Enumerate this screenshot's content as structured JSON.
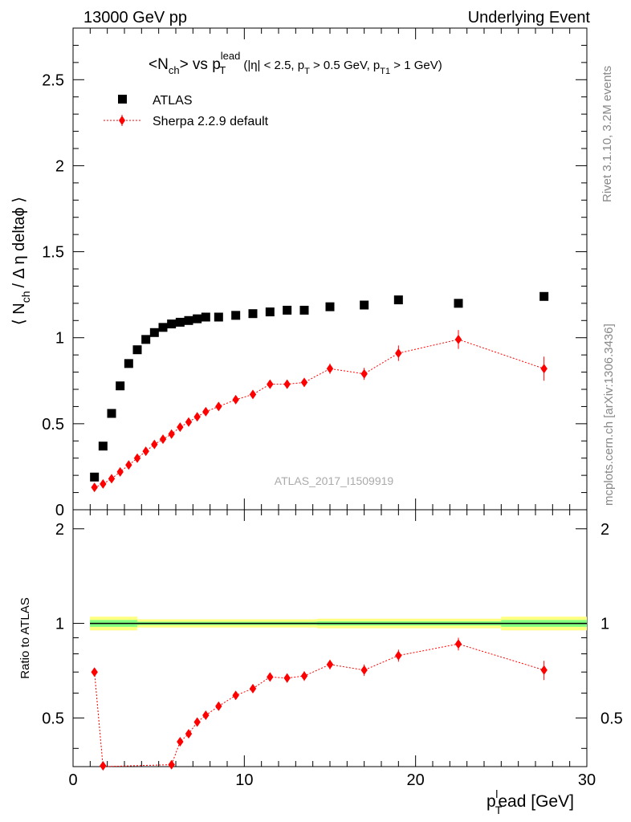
{
  "header": {
    "left": "13000 GeV pp",
    "right": "Underlying Event"
  },
  "plot_title": {
    "main_prefix": "<N",
    "main_sub": "ch",
    "main_mid": "> vs p",
    "main_sup": "lead",
    "main_sub2": "T",
    "cuts_1": "(|η| < 2.5, p",
    "cuts_sub1": "T",
    "cuts_2": " > 0.5 GeV, p",
    "cuts_sub2": "T1",
    "cuts_3": " > 1 GeV)"
  },
  "y_axis_label": {
    "pre": "⟨ N",
    "sub": "ch",
    "post": "/ Δ η deltaϕ ⟩"
  },
  "ratio_y_label": "Ratio to ATLAS",
  "x_axis_label": {
    "p": "p",
    "sub": "T",
    "sup": "l",
    "rest": "ead [GeV]"
  },
  "side_text": {
    "rivet": "Rivet 3.1.10,  3.2M events",
    "mcplots": "mcplots.cern.ch [arXiv:1306.3436]"
  },
  "watermark": "ATLAS_2017_I1509919",
  "legend": {
    "data_label": "ATLAS",
    "mc_label": "Sherpa 2.2.9 default"
  },
  "colors": {
    "data": "#000000",
    "mc": "#ff0000",
    "band_outer": "#ffff80",
    "band_inner": "#80ff80"
  },
  "chart_data": {
    "type": "scatter",
    "x_range": [
      0,
      30
    ],
    "main_y_range": [
      0,
      2.8
    ],
    "ratio_y_range": [
      0.35,
      2.3
    ],
    "main_y_ticks": [
      "0",
      "0.5",
      "1",
      "1.5",
      "2",
      "2.5"
    ],
    "ratio_y_ticks": [
      "0.5",
      "1",
      "2"
    ],
    "x_ticks": [
      "0",
      "10",
      "20",
      "30"
    ],
    "series": [
      {
        "name": "ATLAS",
        "x": [
          1.25,
          1.75,
          2.25,
          2.75,
          3.25,
          3.75,
          4.25,
          4.75,
          5.25,
          5.75,
          6.25,
          6.75,
          7.25,
          7.75,
          8.5,
          9.5,
          10.5,
          11.5,
          12.5,
          13.5,
          15,
          17,
          19,
          22.5,
          27.5
        ],
        "y": [
          0.19,
          0.37,
          0.56,
          0.72,
          0.85,
          0.93,
          0.99,
          1.03,
          1.06,
          1.08,
          1.09,
          1.1,
          1.11,
          1.12,
          1.12,
          1.13,
          1.14,
          1.15,
          1.16,
          1.16,
          1.18,
          1.19,
          1.22,
          1.2,
          1.24
        ]
      },
      {
        "name": "Sherpa 2.2.9 default",
        "x": [
          1.25,
          1.75,
          2.25,
          2.75,
          3.25,
          3.75,
          4.25,
          4.75,
          5.25,
          5.75,
          6.25,
          6.75,
          7.25,
          7.75,
          8.5,
          9.5,
          10.5,
          11.5,
          12.5,
          13.5,
          15,
          17,
          19,
          22.5,
          27.5
        ],
        "y": [
          0.13,
          0.15,
          0.18,
          0.22,
          0.26,
          0.3,
          0.34,
          0.38,
          0.41,
          0.44,
          0.48,
          0.51,
          0.54,
          0.57,
          0.6,
          0.64,
          0.67,
          0.73,
          0.73,
          0.74,
          0.82,
          0.79,
          0.91,
          0.99,
          0.82
        ],
        "yerr": [
          0.01,
          0.01,
          0.01,
          0.01,
          0.01,
          0.01,
          0.01,
          0.01,
          0.01,
          0.01,
          0.01,
          0.01,
          0.015,
          0.015,
          0.015,
          0.015,
          0.02,
          0.02,
          0.025,
          0.025,
          0.03,
          0.035,
          0.045,
          0.055,
          0.07
        ]
      }
    ],
    "ratio": {
      "name": "Sherpa 2.2.9 default / ATLAS",
      "x": [
        1.25,
        1.75,
        5.75,
        6.25,
        6.75,
        7.25,
        7.75,
        8.5,
        9.5,
        10.5,
        11.5,
        12.5,
        13.5,
        15,
        17,
        19,
        22.5,
        27.5
      ],
      "y": [
        0.7,
        0.35,
        0.355,
        0.42,
        0.445,
        0.485,
        0.51,
        0.545,
        0.59,
        0.62,
        0.675,
        0.67,
        0.68,
        0.74,
        0.71,
        0.79,
        0.86,
        0.71
      ],
      "yerr": [
        0.01,
        0.01,
        0.01,
        0.01,
        0.01,
        0.012,
        0.012,
        0.014,
        0.014,
        0.018,
        0.02,
        0.022,
        0.024,
        0.026,
        0.03,
        0.035,
        0.04,
        0.05
      ],
      "band_outer_halfwidth": [
        0.05,
        0.05,
        0.03,
        0.03,
        0.03,
        0.03,
        0.03,
        0.03,
        0.03,
        0.03,
        0.03,
        0.03,
        0.03,
        0.035,
        0.035,
        0.035,
        0.035,
        0.05
      ],
      "band_inner_halfwidth": [
        0.025,
        0.025,
        0.012,
        0.012,
        0.012,
        0.012,
        0.012,
        0.012,
        0.012,
        0.012,
        0.012,
        0.012,
        0.012,
        0.015,
        0.015,
        0.015,
        0.015,
        0.025
      ]
    }
  }
}
